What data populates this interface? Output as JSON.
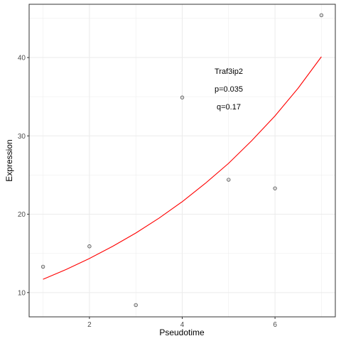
{
  "chart_data": {
    "type": "scatter",
    "xlabel": "Pseudotime",
    "ylabel": "Expression",
    "xlim": [
      0.7,
      7.3
    ],
    "ylim": [
      6.9,
      46.8
    ],
    "x_ticks": [
      2,
      4,
      6
    ],
    "y_ticks": [
      10,
      20,
      30,
      40
    ],
    "grid": true,
    "points": [
      {
        "x": 1,
        "y": 13.3
      },
      {
        "x": 2,
        "y": 15.9
      },
      {
        "x": 3,
        "y": 8.4
      },
      {
        "x": 4,
        "y": 34.9
      },
      {
        "x": 5,
        "y": 24.4
      },
      {
        "x": 6,
        "y": 23.3
      },
      {
        "x": 7,
        "y": 45.4
      }
    ],
    "fit": {
      "color": "#ff0000",
      "x": [
        1.0,
        1.5,
        2.0,
        2.5,
        3.0,
        3.5,
        4.0,
        4.5,
        5.0,
        5.5,
        6.0,
        6.5,
        7.0
      ],
      "y": [
        11.7,
        12.95,
        14.35,
        15.9,
        17.6,
        19.5,
        21.6,
        23.95,
        26.5,
        29.4,
        32.55,
        36.1,
        40.1
      ]
    },
    "annotations": [
      "Traf3ip2",
      "p=0.035",
      "q=0.17"
    ],
    "colors": {
      "panel_border": "#333333",
      "grid": "#ebebeb",
      "point_stroke": "#555555",
      "point_fill": "#c8c8c8"
    }
  }
}
